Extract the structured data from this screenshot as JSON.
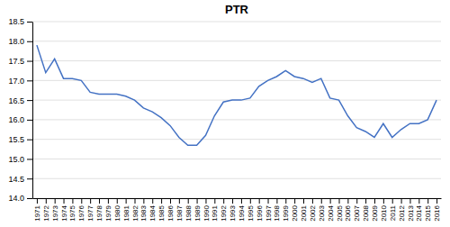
{
  "chart_data": {
    "type": "line",
    "title": "PTR",
    "x": [
      1971,
      1972,
      1973,
      1974,
      1975,
      1976,
      1977,
      1978,
      1979,
      1980,
      1981,
      1982,
      1983,
      1984,
      1985,
      1986,
      1987,
      1988,
      1989,
      1990,
      1991,
      1992,
      1993,
      1994,
      1995,
      1996,
      1997,
      1998,
      1999,
      2000,
      2001,
      2002,
      2003,
      2004,
      2005,
      2006,
      2007,
      2008,
      2009,
      2010,
      2011,
      2012,
      2013,
      2014,
      2015,
      2016
    ],
    "values": [
      17.9,
      17.2,
      17.55,
      17.05,
      17.05,
      17.0,
      16.7,
      16.65,
      16.65,
      16.65,
      16.6,
      16.5,
      16.3,
      16.2,
      16.05,
      15.85,
      15.55,
      15.35,
      15.35,
      15.6,
      16.1,
      16.45,
      16.5,
      16.5,
      16.55,
      16.85,
      17.0,
      17.1,
      17.25,
      17.1,
      17.05,
      16.95,
      17.05,
      16.55,
      16.5,
      16.1,
      15.8,
      15.7,
      15.55,
      15.9,
      15.55,
      15.75,
      15.9,
      15.9,
      16.0,
      16.5
    ],
    "color": "#4472c4",
    "xlim": [
      1970.5,
      2016.5
    ],
    "xticks": [
      1971,
      1972,
      1973,
      1974,
      1975,
      1976,
      1977,
      1978,
      1979,
      1980,
      1981,
      1982,
      1983,
      1984,
      1985,
      1986,
      1987,
      1988,
      1989,
      1990,
      1991,
      1992,
      1993,
      1994,
      1995,
      1996,
      1997,
      1998,
      1999,
      2000,
      2001,
      2002,
      2003,
      2004,
      2005,
      2006,
      2007,
      2008,
      2009,
      2010,
      2011,
      2012,
      2013,
      2014,
      2015,
      2016
    ],
    "ylim": [
      14,
      18.5
    ],
    "yticks": [
      {
        "value": 14,
        "label": "14.0"
      },
      14.5,
      {
        "value": 15,
        "label": "15.0"
      },
      15.5,
      {
        "value": 16,
        "label": "16.0"
      },
      16.5,
      {
        "value": 17,
        "label": "17.0"
      },
      17.5,
      {
        "value": 18,
        "label": "18.0"
      },
      18.5
    ],
    "grid": true
  }
}
